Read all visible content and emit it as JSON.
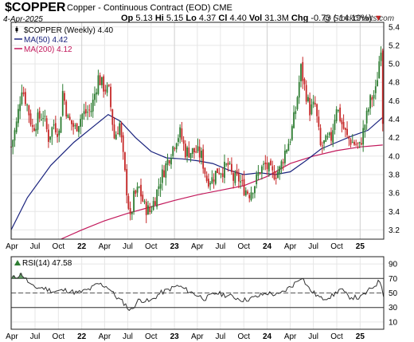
{
  "header": {
    "symbol": "$COPPER",
    "description": "Copper - Continuous Contract (EOD)",
    "exchange": "CME",
    "date": "4-Apr-2025",
    "open_label": "Op",
    "open": "5.13",
    "high_label": "Hi",
    "high": "5.15",
    "low_label": "Lo",
    "low": "4.37",
    "close_label": "Cl",
    "close": "4.40",
    "volume_label": "Vol",
    "volume": "31.3M",
    "change_label": "Chg",
    "change": "-0.73 (-14.19%)",
    "watermark": "@ StockCharts.com"
  },
  "colors": {
    "up": "#2e7d32",
    "down": "#c62828",
    "ma50": "#1a237e",
    "ma200": "#c2185b",
    "rsi": "#333333",
    "rsi_fill": "#2e7d32",
    "grid": "#e6e6e6"
  },
  "chart_data": [
    {
      "type": "candlestick",
      "title": "$COPPER Copper - Continuous Contract (EOD) CME",
      "timeframe": "Weekly",
      "x_range": [
        "2021-03-29",
        "2025-04-04"
      ],
      "ylim": [
        3.1,
        5.45
      ],
      "y_ticks": [
        3.2,
        3.4,
        3.6,
        3.8,
        4.0,
        4.2,
        4.4,
        4.6,
        4.8,
        5.0,
        5.2,
        5.4
      ],
      "x_ticks": [
        {
          "label": "Apr",
          "date": "2021-04-01"
        },
        {
          "label": "Jul",
          "date": "2021-07-01"
        },
        {
          "label": "Oct",
          "date": "2021-10-01"
        },
        {
          "label": "22",
          "date": "2022-01-01"
        },
        {
          "label": "Apr",
          "date": "2022-04-01"
        },
        {
          "label": "Jul",
          "date": "2022-07-01"
        },
        {
          "label": "Oct",
          "date": "2022-10-01"
        },
        {
          "label": "23",
          "date": "2023-01-01"
        },
        {
          "label": "Apr",
          "date": "2023-04-01"
        },
        {
          "label": "Jul",
          "date": "2023-07-01"
        },
        {
          "label": "Oct",
          "date": "2023-10-01"
        },
        {
          "label": "24",
          "date": "2024-01-01"
        },
        {
          "label": "Apr",
          "date": "2024-04-01"
        },
        {
          "label": "Jul",
          "date": "2024-07-01"
        },
        {
          "label": "Oct",
          "date": "2024-10-01"
        },
        {
          "label": "25",
          "date": "2025-01-01"
        }
      ],
      "grid": true,
      "legend": [
        {
          "name": "$COPPER (Weekly) 4.40",
          "marker": "candle"
        },
        {
          "name": "MA(50) 4.42",
          "color": "#1a237e"
        },
        {
          "name": "MA(200) 4.12",
          "color": "#c2185b"
        }
      ],
      "series": [
        {
          "name": "$COPPER (Weekly)",
          "kind": "close",
          "points": [
            [
              "2021-03-29",
              4.1
            ],
            [
              "2021-04-19",
              4.35
            ],
            [
              "2021-05-10",
              4.75
            ],
            [
              "2021-05-31",
              4.55
            ],
            [
              "2021-06-21",
              4.3
            ],
            [
              "2021-07-12",
              4.4
            ],
            [
              "2021-08-02",
              4.45
            ],
            [
              "2021-08-23",
              4.2
            ],
            [
              "2021-09-13",
              4.35
            ],
            [
              "2021-10-04",
              4.25
            ],
            [
              "2021-10-18",
              4.7
            ],
            [
              "2021-11-08",
              4.4
            ],
            [
              "2021-12-06",
              4.3
            ],
            [
              "2022-01-03",
              4.45
            ],
            [
              "2022-02-07",
              4.5
            ],
            [
              "2022-03-07",
              4.85
            ],
            [
              "2022-03-28",
              4.75
            ],
            [
              "2022-04-18",
              4.7
            ],
            [
              "2022-05-09",
              4.2
            ],
            [
              "2022-05-30",
              4.35
            ],
            [
              "2022-06-20",
              3.8
            ],
            [
              "2022-07-11",
              3.3
            ],
            [
              "2022-07-25",
              3.55
            ],
            [
              "2022-08-15",
              3.65
            ],
            [
              "2022-09-05",
              3.45
            ],
            [
              "2022-09-26",
              3.4
            ],
            [
              "2022-10-17",
              3.55
            ],
            [
              "2022-11-07",
              3.75
            ],
            [
              "2022-11-28",
              3.9
            ],
            [
              "2023-01-09",
              4.2
            ],
            [
              "2023-01-23",
              4.25
            ],
            [
              "2023-02-13",
              4.05
            ],
            [
              "2023-03-06",
              4.05
            ],
            [
              "2023-03-27",
              4.05
            ],
            [
              "2023-04-17",
              4.0
            ],
            [
              "2023-05-08",
              3.75
            ],
            [
              "2023-05-29",
              3.75
            ],
            [
              "2023-06-19",
              3.85
            ],
            [
              "2023-07-10",
              3.85
            ],
            [
              "2023-07-31",
              3.9
            ],
            [
              "2023-08-21",
              3.75
            ],
            [
              "2023-09-11",
              3.75
            ],
            [
              "2023-10-02",
              3.65
            ],
            [
              "2023-10-23",
              3.6
            ],
            [
              "2023-11-13",
              3.7
            ],
            [
              "2023-12-04",
              3.85
            ],
            [
              "2023-12-25",
              3.9
            ],
            [
              "2024-01-22",
              3.8
            ],
            [
              "2024-02-19",
              3.85
            ],
            [
              "2024-03-11",
              4.05
            ],
            [
              "2024-04-01",
              4.2
            ],
            [
              "2024-04-22",
              4.5
            ],
            [
              "2024-05-13",
              4.95
            ],
            [
              "2024-05-27",
              4.75
            ],
            [
              "2024-06-17",
              4.5
            ],
            [
              "2024-07-08",
              4.55
            ],
            [
              "2024-07-29",
              4.1
            ],
            [
              "2024-08-19",
              4.15
            ],
            [
              "2024-09-09",
              4.2
            ],
            [
              "2024-09-30",
              4.55
            ],
            [
              "2024-10-21",
              4.35
            ],
            [
              "2024-11-11",
              4.2
            ],
            [
              "2024-12-02",
              4.15
            ],
            [
              "2024-12-30",
              4.1
            ],
            [
              "2025-01-20",
              4.35
            ],
            [
              "2025-02-10",
              4.6
            ],
            [
              "2025-03-03",
              4.7
            ],
            [
              "2025-03-24",
              5.2
            ],
            [
              "2025-03-31",
              4.4
            ]
          ]
        },
        {
          "name": "MA(50)",
          "kind": "line",
          "points": [
            [
              "2021-03-29",
              3.2
            ],
            [
              "2021-06-01",
              3.55
            ],
            [
              "2021-09-01",
              3.9
            ],
            [
              "2021-12-01",
              4.15
            ],
            [
              "2022-03-01",
              4.35
            ],
            [
              "2022-04-15",
              4.45
            ],
            [
              "2022-06-01",
              4.38
            ],
            [
              "2022-08-01",
              4.2
            ],
            [
              "2022-10-01",
              4.05
            ],
            [
              "2022-12-01",
              3.98
            ],
            [
              "2023-02-01",
              3.97
            ],
            [
              "2023-04-01",
              3.95
            ],
            [
              "2023-06-01",
              3.92
            ],
            [
              "2023-08-01",
              3.85
            ],
            [
              "2023-10-01",
              3.8
            ],
            [
              "2023-12-01",
              3.82
            ],
            [
              "2024-02-01",
              3.8
            ],
            [
              "2024-04-01",
              3.83
            ],
            [
              "2024-06-01",
              3.95
            ],
            [
              "2024-08-01",
              4.08
            ],
            [
              "2024-10-01",
              4.15
            ],
            [
              "2024-12-01",
              4.22
            ],
            [
              "2025-02-01",
              4.28
            ],
            [
              "2025-03-31",
              4.42
            ]
          ]
        },
        {
          "name": "MA(200)",
          "kind": "line",
          "points": [
            [
              "2021-10-11",
              3.1
            ],
            [
              "2022-01-01",
              3.2
            ],
            [
              "2022-04-01",
              3.3
            ],
            [
              "2022-07-01",
              3.38
            ],
            [
              "2022-10-01",
              3.45
            ],
            [
              "2023-01-01",
              3.52
            ],
            [
              "2023-04-01",
              3.58
            ],
            [
              "2023-07-01",
              3.63
            ],
            [
              "2023-10-01",
              3.68
            ],
            [
              "2024-01-01",
              3.78
            ],
            [
              "2024-04-01",
              3.92
            ],
            [
              "2024-07-01",
              4.0
            ],
            [
              "2024-10-01",
              4.06
            ],
            [
              "2025-01-01",
              4.1
            ],
            [
              "2025-03-31",
              4.12
            ]
          ]
        }
      ]
    },
    {
      "type": "line",
      "title": "RSI(14) 47.58",
      "ylim": [
        0,
        100
      ],
      "y_ticks": [
        10,
        30,
        50,
        70,
        90
      ],
      "reference_lines": [
        30,
        50,
        70
      ],
      "series": [
        {
          "name": "RSI(14)",
          "points": [
            [
              "2021-04-01",
              70
            ],
            [
              "2021-05-10",
              76
            ],
            [
              "2021-06-21",
              58
            ],
            [
              "2021-08-01",
              57
            ],
            [
              "2021-09-15",
              52
            ],
            [
              "2021-11-01",
              54
            ],
            [
              "2021-12-15",
              50
            ],
            [
              "2022-02-01",
              55
            ],
            [
              "2022-03-07",
              63
            ],
            [
              "2022-04-15",
              58
            ],
            [
              "2022-05-15",
              45
            ],
            [
              "2022-06-20",
              35
            ],
            [
              "2022-07-11",
              25
            ],
            [
              "2022-08-15",
              41
            ],
            [
              "2022-09-26",
              38
            ],
            [
              "2022-11-07",
              50
            ],
            [
              "2023-01-15",
              60
            ],
            [
              "2023-03-01",
              52
            ],
            [
              "2023-05-01",
              42
            ],
            [
              "2023-06-15",
              50
            ],
            [
              "2023-08-15",
              45
            ],
            [
              "2023-10-01",
              40
            ],
            [
              "2023-11-15",
              44
            ],
            [
              "2024-01-01",
              50
            ],
            [
              "2024-02-15",
              47
            ],
            [
              "2024-04-15",
              62
            ],
            [
              "2024-05-15",
              73
            ],
            [
              "2024-06-15",
              55
            ],
            [
              "2024-08-01",
              42
            ],
            [
              "2024-09-15",
              46
            ],
            [
              "2024-10-15",
              56
            ],
            [
              "2024-11-15",
              45
            ],
            [
              "2025-01-01",
              43
            ],
            [
              "2025-02-10",
              55
            ],
            [
              "2025-03-24",
              68
            ],
            [
              "2025-03-31",
              48
            ]
          ]
        }
      ],
      "x_ticks": [
        "Apr",
        "Jul",
        "Oct",
        "22",
        "Apr",
        "Jul",
        "Oct",
        "23",
        "Apr",
        "Jul",
        "Oct",
        "24",
        "Apr",
        "Jul",
        "Oct",
        "25"
      ]
    }
  ]
}
